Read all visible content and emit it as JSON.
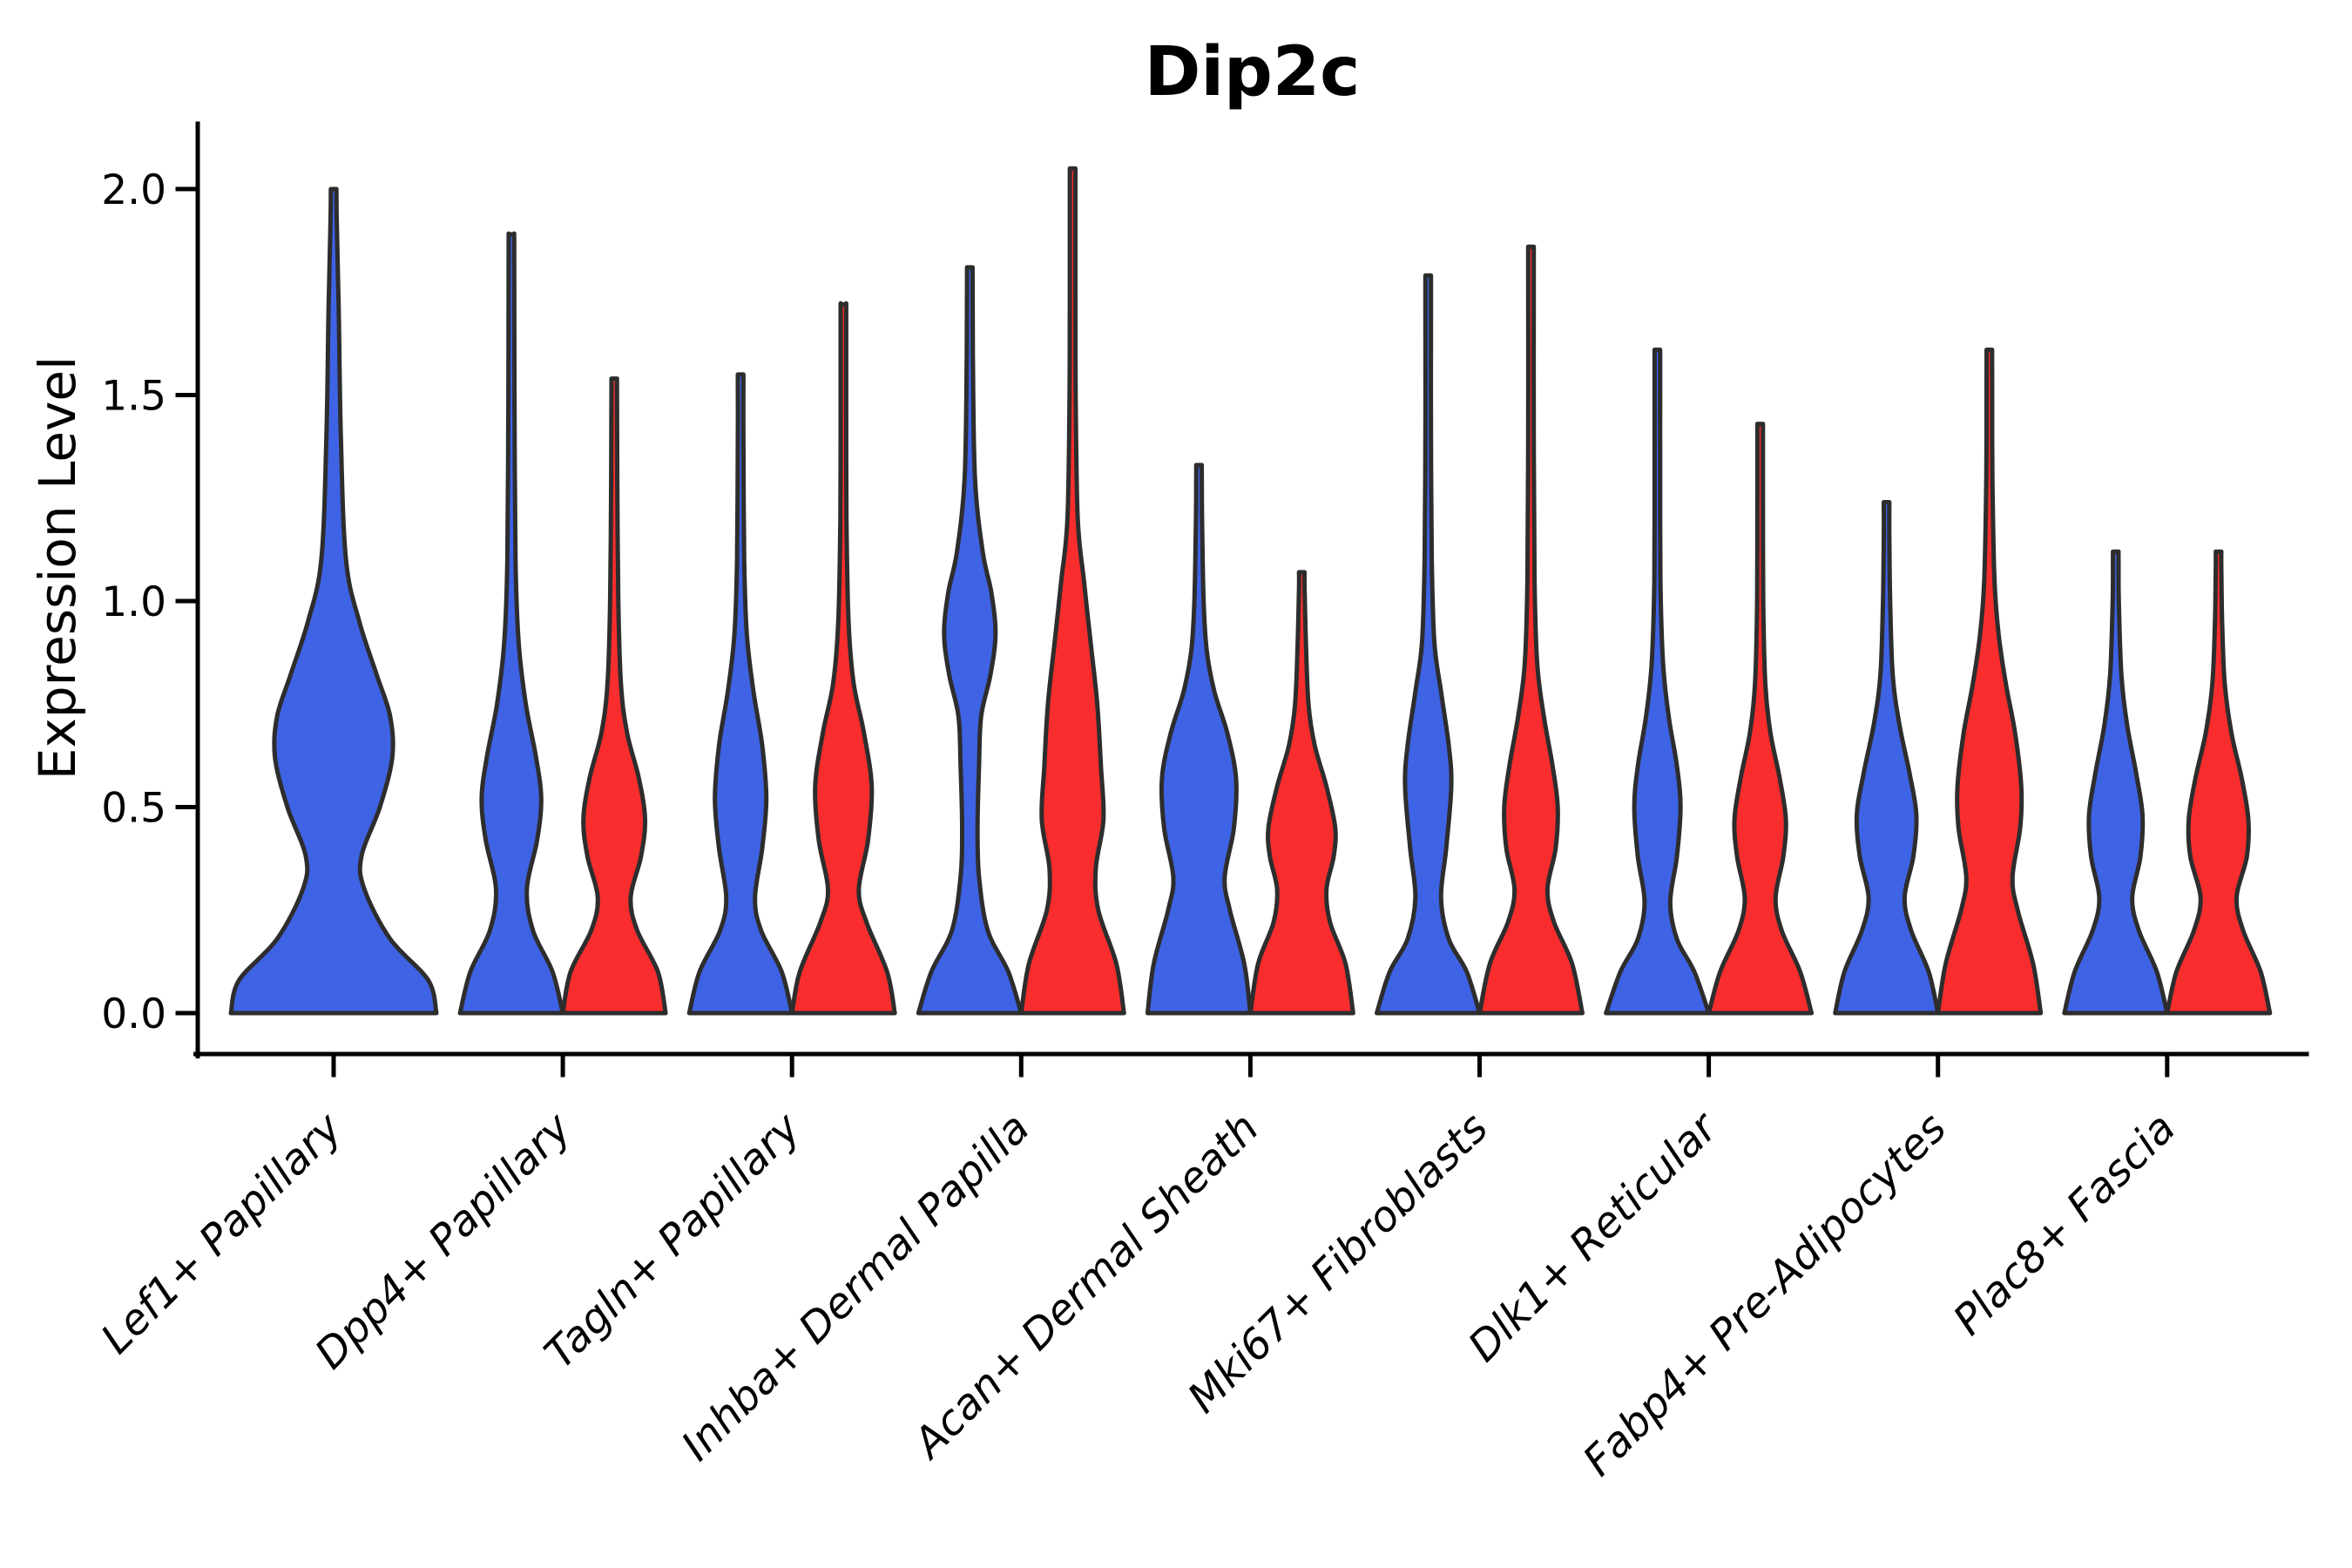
{
  "chart_data": {
    "type": "violin",
    "title": "Dip2c",
    "ylabel": "Expression Level",
    "xlabel": "",
    "grid": false,
    "legend": "none",
    "ylim": [
      -0.1,
      2.16
    ],
    "yticks": [
      {
        "label": "0.0",
        "value": 0.0
      },
      {
        "label": "0.5",
        "value": 0.5
      },
      {
        "label": "1.0",
        "value": 1.0
      },
      {
        "label": "1.5",
        "value": 1.5
      },
      {
        "label": "2.0",
        "value": 2.0
      }
    ],
    "categories": [
      "Lef1+ Papillary",
      "Dpp4+ Papillary",
      "Tagln+ Papillary",
      "Inhba+ Dermal Papilla",
      "Acan+ Dermal Sheath",
      "Mki67+ Fibroblasts",
      "Dlk1+ Reticular",
      "Fabp4+ Pre-Adipocytes",
      "Plac8+ Fascia"
    ],
    "colors": {
      "blue": "#3F63E5",
      "red": "#F92D2D",
      "outline": "#2D2D2D",
      "axis": "#000000"
    },
    "violins": [
      {
        "group": 0,
        "side": "full",
        "color": "blue",
        "max_expression": 2.0,
        "profile": [
          [
            0,
            1.0
          ],
          [
            0.08,
            0.92
          ],
          [
            0.18,
            0.55
          ],
          [
            0.3,
            0.3
          ],
          [
            0.38,
            0.27
          ],
          [
            0.5,
            0.45
          ],
          [
            0.62,
            0.57
          ],
          [
            0.72,
            0.55
          ],
          [
            0.82,
            0.42
          ],
          [
            0.95,
            0.25
          ],
          [
            1.1,
            0.12
          ],
          [
            1.4,
            0.07
          ],
          [
            1.7,
            0.05
          ],
          [
            1.93,
            0.03
          ],
          [
            2.0,
            0.0
          ]
        ]
      },
      {
        "group": 1,
        "side": "left",
        "color": "blue",
        "max_expression": 1.89,
        "profile": [
          [
            0,
            1.0
          ],
          [
            0.1,
            0.8
          ],
          [
            0.2,
            0.42
          ],
          [
            0.3,
            0.3
          ],
          [
            0.42,
            0.5
          ],
          [
            0.52,
            0.58
          ],
          [
            0.62,
            0.48
          ],
          [
            0.75,
            0.28
          ],
          [
            0.9,
            0.14
          ],
          [
            1.1,
            0.08
          ],
          [
            1.5,
            0.06
          ],
          [
            1.85,
            0.03
          ],
          [
            1.89,
            0.0
          ]
        ]
      },
      {
        "group": 1,
        "side": "right",
        "color": "red",
        "max_expression": 1.54,
        "profile": [
          [
            0,
            1.0
          ],
          [
            0.1,
            0.85
          ],
          [
            0.2,
            0.45
          ],
          [
            0.28,
            0.32
          ],
          [
            0.38,
            0.52
          ],
          [
            0.47,
            0.6
          ],
          [
            0.57,
            0.48
          ],
          [
            0.68,
            0.25
          ],
          [
            0.8,
            0.13
          ],
          [
            1.0,
            0.08
          ],
          [
            1.3,
            0.06
          ],
          [
            1.5,
            0.03
          ],
          [
            1.54,
            0.0
          ]
        ]
      },
      {
        "group": 2,
        "side": "left",
        "color": "blue",
        "max_expression": 1.55,
        "profile": [
          [
            0,
            1.0
          ],
          [
            0.1,
            0.8
          ],
          [
            0.2,
            0.4
          ],
          [
            0.28,
            0.28
          ],
          [
            0.4,
            0.42
          ],
          [
            0.52,
            0.5
          ],
          [
            0.65,
            0.42
          ],
          [
            0.78,
            0.25
          ],
          [
            0.92,
            0.12
          ],
          [
            1.1,
            0.07
          ],
          [
            1.4,
            0.05
          ],
          [
            1.52,
            0.03
          ],
          [
            1.55,
            0.0
          ]
        ]
      },
      {
        "group": 2,
        "side": "right",
        "color": "red",
        "max_expression": 1.72,
        "profile": [
          [
            0,
            1.0
          ],
          [
            0.1,
            0.85
          ],
          [
            0.22,
            0.45
          ],
          [
            0.3,
            0.3
          ],
          [
            0.42,
            0.48
          ],
          [
            0.55,
            0.55
          ],
          [
            0.68,
            0.4
          ],
          [
            0.8,
            0.2
          ],
          [
            0.95,
            0.1
          ],
          [
            1.2,
            0.06
          ],
          [
            1.5,
            0.04
          ],
          [
            1.7,
            0.02
          ],
          [
            1.72,
            0.0
          ]
        ]
      },
      {
        "group": 3,
        "side": "left",
        "color": "blue",
        "max_expression": 1.81,
        "profile": [
          [
            0,
            1.0
          ],
          [
            0.1,
            0.75
          ],
          [
            0.2,
            0.35
          ],
          [
            0.33,
            0.18
          ],
          [
            0.45,
            0.15
          ],
          [
            0.6,
            0.18
          ],
          [
            0.72,
            0.22
          ],
          [
            0.82,
            0.4
          ],
          [
            0.92,
            0.5
          ],
          [
            1.02,
            0.42
          ],
          [
            1.12,
            0.25
          ],
          [
            1.3,
            0.1
          ],
          [
            1.6,
            0.06
          ],
          [
            1.78,
            0.03
          ],
          [
            1.81,
            0.0
          ]
        ]
      },
      {
        "group": 3,
        "side": "right",
        "color": "red",
        "max_expression": 2.05,
        "profile": [
          [
            0,
            1.0
          ],
          [
            0.12,
            0.85
          ],
          [
            0.25,
            0.5
          ],
          [
            0.35,
            0.45
          ],
          [
            0.47,
            0.6
          ],
          [
            0.6,
            0.55
          ],
          [
            0.75,
            0.48
          ],
          [
            0.9,
            0.35
          ],
          [
            1.05,
            0.22
          ],
          [
            1.2,
            0.1
          ],
          [
            1.5,
            0.06
          ],
          [
            1.8,
            0.04
          ],
          [
            2.0,
            0.02
          ],
          [
            2.05,
            0.0
          ]
        ]
      },
      {
        "group": 4,
        "side": "left",
        "color": "blue",
        "max_expression": 1.33,
        "profile": [
          [
            0,
            1.0
          ],
          [
            0.12,
            0.88
          ],
          [
            0.25,
            0.6
          ],
          [
            0.33,
            0.5
          ],
          [
            0.45,
            0.68
          ],
          [
            0.57,
            0.72
          ],
          [
            0.68,
            0.55
          ],
          [
            0.78,
            0.3
          ],
          [
            0.88,
            0.15
          ],
          [
            1.0,
            0.09
          ],
          [
            1.2,
            0.06
          ],
          [
            1.3,
            0.03
          ],
          [
            1.33,
            0.0
          ]
        ]
      },
      {
        "group": 4,
        "side": "right",
        "color": "red",
        "max_expression": 1.07,
        "profile": [
          [
            0,
            1.0
          ],
          [
            0.12,
            0.85
          ],
          [
            0.22,
            0.55
          ],
          [
            0.3,
            0.48
          ],
          [
            0.38,
            0.62
          ],
          [
            0.45,
            0.65
          ],
          [
            0.55,
            0.48
          ],
          [
            0.65,
            0.25
          ],
          [
            0.75,
            0.13
          ],
          [
            0.9,
            0.08
          ],
          [
            1.03,
            0.04
          ],
          [
            1.07,
            0.0
          ]
        ]
      },
      {
        "group": 5,
        "side": "left",
        "color": "blue",
        "max_expression": 1.79,
        "profile": [
          [
            0,
            1.0
          ],
          [
            0.1,
            0.75
          ],
          [
            0.18,
            0.4
          ],
          [
            0.28,
            0.25
          ],
          [
            0.4,
            0.35
          ],
          [
            0.55,
            0.45
          ],
          [
            0.65,
            0.4
          ],
          [
            0.78,
            0.25
          ],
          [
            0.9,
            0.12
          ],
          [
            1.1,
            0.07
          ],
          [
            1.4,
            0.05
          ],
          [
            1.7,
            0.03
          ],
          [
            1.79,
            0.0
          ]
        ]
      },
      {
        "group": 5,
        "side": "right",
        "color": "red",
        "max_expression": 1.86,
        "profile": [
          [
            0,
            1.0
          ],
          [
            0.12,
            0.8
          ],
          [
            0.22,
            0.45
          ],
          [
            0.3,
            0.32
          ],
          [
            0.4,
            0.48
          ],
          [
            0.5,
            0.52
          ],
          [
            0.6,
            0.42
          ],
          [
            0.72,
            0.25
          ],
          [
            0.85,
            0.12
          ],
          [
            1.05,
            0.07
          ],
          [
            1.4,
            0.05
          ],
          [
            1.8,
            0.03
          ],
          [
            1.86,
            0.0
          ]
        ]
      },
      {
        "group": 6,
        "side": "left",
        "color": "blue",
        "max_expression": 1.61,
        "profile": [
          [
            0,
            1.0
          ],
          [
            0.1,
            0.72
          ],
          [
            0.18,
            0.38
          ],
          [
            0.27,
            0.25
          ],
          [
            0.38,
            0.38
          ],
          [
            0.5,
            0.45
          ],
          [
            0.6,
            0.38
          ],
          [
            0.72,
            0.22
          ],
          [
            0.85,
            0.11
          ],
          [
            1.05,
            0.06
          ],
          [
            1.35,
            0.04
          ],
          [
            1.58,
            0.02
          ],
          [
            1.61,
            0.0
          ]
        ]
      },
      {
        "group": 6,
        "side": "right",
        "color": "red",
        "max_expression": 1.43,
        "profile": [
          [
            0,
            1.0
          ],
          [
            0.1,
            0.78
          ],
          [
            0.2,
            0.42
          ],
          [
            0.28,
            0.3
          ],
          [
            0.38,
            0.45
          ],
          [
            0.47,
            0.5
          ],
          [
            0.57,
            0.38
          ],
          [
            0.68,
            0.2
          ],
          [
            0.8,
            0.1
          ],
          [
            1.0,
            0.06
          ],
          [
            1.3,
            0.04
          ],
          [
            1.43,
            0.0
          ]
        ]
      },
      {
        "group": 7,
        "side": "left",
        "color": "blue",
        "max_expression": 1.24,
        "profile": [
          [
            0,
            1.0
          ],
          [
            0.1,
            0.82
          ],
          [
            0.2,
            0.48
          ],
          [
            0.28,
            0.35
          ],
          [
            0.38,
            0.52
          ],
          [
            0.48,
            0.58
          ],
          [
            0.58,
            0.45
          ],
          [
            0.7,
            0.25
          ],
          [
            0.82,
            0.12
          ],
          [
            1.0,
            0.07
          ],
          [
            1.15,
            0.04
          ],
          [
            1.24,
            0.0
          ]
        ]
      },
      {
        "group": 7,
        "side": "right",
        "color": "red",
        "max_expression": 1.61,
        "profile": [
          [
            0,
            1.0
          ],
          [
            0.12,
            0.85
          ],
          [
            0.25,
            0.55
          ],
          [
            0.33,
            0.45
          ],
          [
            0.45,
            0.6
          ],
          [
            0.55,
            0.62
          ],
          [
            0.68,
            0.5
          ],
          [
            0.8,
            0.32
          ],
          [
            0.92,
            0.18
          ],
          [
            1.05,
            0.1
          ],
          [
            1.3,
            0.06
          ],
          [
            1.55,
            0.03
          ],
          [
            1.61,
            0.0
          ]
        ]
      },
      {
        "group": 8,
        "side": "left",
        "color": "blue",
        "max_expression": 1.12,
        "profile": [
          [
            0,
            1.0
          ],
          [
            0.1,
            0.8
          ],
          [
            0.2,
            0.45
          ],
          [
            0.28,
            0.32
          ],
          [
            0.38,
            0.48
          ],
          [
            0.48,
            0.52
          ],
          [
            0.58,
            0.4
          ],
          [
            0.7,
            0.22
          ],
          [
            0.82,
            0.11
          ],
          [
            1.0,
            0.06
          ],
          [
            1.1,
            0.03
          ],
          [
            1.12,
            0.0
          ]
        ]
      },
      {
        "group": 8,
        "side": "right",
        "color": "red",
        "max_expression": 1.12,
        "profile": [
          [
            0,
            1.0
          ],
          [
            0.1,
            0.82
          ],
          [
            0.2,
            0.48
          ],
          [
            0.28,
            0.35
          ],
          [
            0.38,
            0.55
          ],
          [
            0.47,
            0.58
          ],
          [
            0.57,
            0.45
          ],
          [
            0.68,
            0.25
          ],
          [
            0.8,
            0.12
          ],
          [
            0.95,
            0.07
          ],
          [
            1.08,
            0.03
          ],
          [
            1.12,
            0.0
          ]
        ]
      }
    ]
  }
}
